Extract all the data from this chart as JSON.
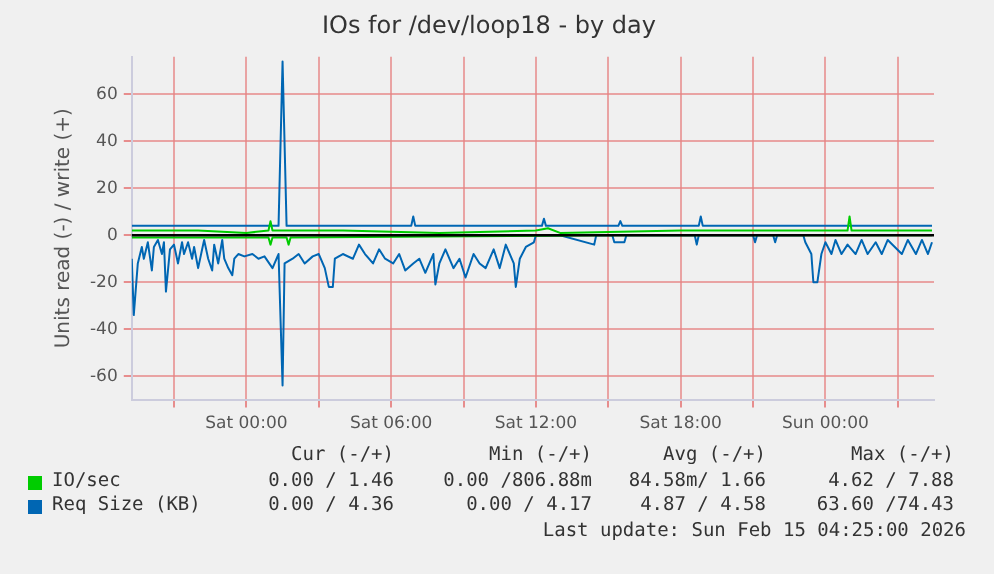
{
  "chart_data": {
    "type": "line",
    "title": "IOs for /dev/loop18 - by day",
    "ylabel": "Units read (-) / write (+)",
    "xlim": [
      "2026-02-13T19:15",
      "2026-02-15T04:30"
    ],
    "ylim": [
      -70,
      76
    ],
    "xticks": [
      {
        "value": "2026-02-13T21:00",
        "label": null
      },
      {
        "value": "2026-02-14T00:00",
        "label": "Sat 00:00"
      },
      {
        "value": "2026-02-14T03:00",
        "label": null
      },
      {
        "value": "2026-02-14T06:00",
        "label": "Sat 06:00"
      },
      {
        "value": "2026-02-14T09:00",
        "label": null
      },
      {
        "value": "2026-02-14T12:00",
        "label": "Sat 12:00"
      },
      {
        "value": "2026-02-14T15:00",
        "label": null
      },
      {
        "value": "2026-02-14T18:00",
        "label": "Sat 18:00"
      },
      {
        "value": "2026-02-14T21:00",
        "label": null
      },
      {
        "value": "2026-02-15T00:00",
        "label": "Sun 00:00"
      },
      {
        "value": "2026-02-15T03:00",
        "label": null
      }
    ],
    "yticks": [
      -60,
      -40,
      -20,
      0,
      20,
      40,
      60
    ],
    "grid": true,
    "legend": "bottom",
    "ref_lines": [
      {
        "axis": "y",
        "value": 0,
        "color": "#000000"
      }
    ],
    "series": [
      {
        "name": "IO/sec",
        "color": "#00cc00",
        "x": [
          "2026-02-13T19:15",
          "2026-02-13T22:00",
          "2026-02-14T00:00",
          "2026-02-14T00:55",
          "2026-02-14T01:00",
          "2026-02-14T01:05",
          "2026-02-14T04:00",
          "2026-02-14T08:00",
          "2026-02-14T12:00",
          "2026-02-14T12:30",
          "2026-02-14T13:00",
          "2026-02-14T18:00",
          "2026-02-14T22:00",
          "2026-02-15T00:55",
          "2026-02-15T01:00",
          "2026-02-15T01:05",
          "2026-02-15T04:25"
        ],
        "values": [
          2,
          2,
          1,
          2,
          6,
          2,
          2,
          1,
          2,
          3,
          1,
          2,
          2,
          2,
          8,
          2,
          2
        ]
      },
      {
        "name": "Req Size (KB)",
        "color": "#0066b3",
        "x": [
          "2026-02-13T19:15",
          "2026-02-14T01:20",
          "2026-02-14T01:30",
          "2026-02-14T01:40",
          "2026-02-14T06:50",
          "2026-02-14T06:55",
          "2026-02-14T07:00",
          "2026-02-14T12:15",
          "2026-02-14T12:20",
          "2026-02-14T12:25",
          "2026-02-14T15:25",
          "2026-02-14T15:30",
          "2026-02-14T15:35",
          "2026-02-14T18:45",
          "2026-02-14T18:50",
          "2026-02-14T18:55",
          "2026-02-15T04:25"
        ],
        "values": [
          4,
          4,
          74,
          4,
          4,
          8,
          4,
          4,
          7,
          4,
          4,
          6,
          4,
          4,
          8,
          4,
          4
        ]
      },
      {
        "color": "#00cc00",
        "x": [
          "2026-02-13T19:15",
          "2026-02-14T00:55",
          "2026-02-14T01:00",
          "2026-02-14T01:05",
          "2026-02-14T01:40",
          "2026-02-14T01:45",
          "2026-02-14T01:50",
          "2026-02-14T15:00",
          "2026-02-15T04:25"
        ],
        "values": [
          -1,
          -1,
          -4,
          -1,
          -1,
          -4,
          -1,
          0,
          0
        ]
      },
      {
        "color": "#0066b3",
        "x": [
          "2026-02-13T19:15",
          "2026-02-13T19:20",
          "2026-02-13T19:30",
          "2026-02-13T19:40",
          "2026-02-13T19:45",
          "2026-02-13T19:55",
          "2026-02-13T20:05",
          "2026-02-13T20:10",
          "2026-02-13T20:20",
          "2026-02-13T20:30",
          "2026-02-13T20:35",
          "2026-02-13T20:40",
          "2026-02-13T20:50",
          "2026-02-13T21:00",
          "2026-02-13T21:10",
          "2026-02-13T21:20",
          "2026-02-13T21:25",
          "2026-02-13T21:35",
          "2026-02-13T21:45",
          "2026-02-13T21:50",
          "2026-02-13T22:00",
          "2026-02-13T22:10",
          "2026-02-13T22:15",
          "2026-02-13T22:25",
          "2026-02-13T22:35",
          "2026-02-13T22:40",
          "2026-02-13T22:50",
          "2026-02-13T23:00",
          "2026-02-13T23:05",
          "2026-02-13T23:15",
          "2026-02-13T23:25",
          "2026-02-13T23:30",
          "2026-02-13T23:40",
          "2026-02-13T23:55",
          "2026-02-14T00:15",
          "2026-02-14T00:30",
          "2026-02-14T00:45",
          "2026-02-14T01:05",
          "2026-02-14T01:20",
          "2026-02-14T01:30",
          "2026-02-14T01:35",
          "2026-02-14T01:55",
          "2026-02-14T02:10",
          "2026-02-14T02:25",
          "2026-02-14T02:45",
          "2026-02-14T03:00",
          "2026-02-14T03:15",
          "2026-02-14T03:25",
          "2026-02-14T03:35",
          "2026-02-14T03:40",
          "2026-02-14T04:00",
          "2026-02-14T04:25",
          "2026-02-14T04:40",
          "2026-02-14T04:55",
          "2026-02-14T05:15",
          "2026-02-14T05:30",
          "2026-02-14T05:45",
          "2026-02-14T06:05",
          "2026-02-14T06:20",
          "2026-02-14T06:35",
          "2026-02-14T06:55",
          "2026-02-14T07:10",
          "2026-02-14T07:25",
          "2026-02-14T07:45",
          "2026-02-14T07:50",
          "2026-02-14T08:00",
          "2026-02-14T08:15",
          "2026-02-14T08:35",
          "2026-02-14T08:50",
          "2026-02-14T09:05",
          "2026-02-14T09:25",
          "2026-02-14T09:40",
          "2026-02-14T09:55",
          "2026-02-14T10:15",
          "2026-02-14T10:30",
          "2026-02-14T10:45",
          "2026-02-14T11:05",
          "2026-02-14T11:10",
          "2026-02-14T11:20",
          "2026-02-14T11:35",
          "2026-02-14T11:55",
          "2026-02-14T12:00",
          "2026-02-14T13:00",
          "2026-02-14T14:25",
          "2026-02-14T14:30",
          "2026-02-14T15:10",
          "2026-02-14T15:15",
          "2026-02-14T15:40",
          "2026-02-14T15:45",
          "2026-02-14T18:35",
          "2026-02-14T18:40",
          "2026-02-14T18:45",
          "2026-02-14T21:00",
          "2026-02-14T21:05",
          "2026-02-14T21:10",
          "2026-02-14T21:50",
          "2026-02-14T21:55",
          "2026-02-14T22:00",
          "2026-02-14T23:05",
          "2026-02-14T23:10",
          "2026-02-14T23:25",
          "2026-02-14T23:30",
          "2026-02-14T23:40",
          "2026-02-14T23:50",
          "2026-02-15T00:00",
          "2026-02-15T00:15",
          "2026-02-15T00:25",
          "2026-02-15T00:40",
          "2026-02-15T00:55",
          "2026-02-15T01:15",
          "2026-02-15T01:30",
          "2026-02-15T01:45",
          "2026-02-15T02:05",
          "2026-02-15T02:20",
          "2026-02-15T02:35",
          "2026-02-15T03:10",
          "2026-02-15T03:25",
          "2026-02-15T03:45",
          "2026-02-15T04:00",
          "2026-02-15T04:15",
          "2026-02-15T04:25"
        ],
        "values": [
          -10,
          -34,
          -12,
          -5,
          -10,
          -3,
          -15,
          -5,
          -2,
          -8,
          -3,
          -24,
          -6,
          -4,
          -12,
          -3,
          -8,
          -3,
          -10,
          -5,
          -14,
          -6,
          -2,
          -10,
          -15,
          -4,
          -12,
          -2,
          -10,
          -14,
          -17,
          -10,
          -8,
          -9,
          -8,
          -10,
          -9,
          -14,
          -8,
          -64,
          -12,
          -10,
          -8,
          -12,
          -9,
          -8,
          -14,
          -22,
          -22,
          -10,
          -8,
          -10,
          -4,
          -8,
          -12,
          -6,
          -10,
          -12,
          -8,
          -15,
          -12,
          -10,
          -16,
          -8,
          -21,
          -12,
          -6,
          -14,
          -10,
          -18,
          -8,
          -12,
          -14,
          -6,
          -14,
          -4,
          -12,
          -22,
          -10,
          -5,
          -3,
          0,
          0,
          -4,
          0,
          0,
          -3,
          -3,
          0,
          0,
          -4,
          0,
          0,
          -3,
          0,
          0,
          -3,
          0,
          0,
          -3,
          -8,
          -20,
          -20,
          -8,
          -3,
          -8,
          -2,
          -8,
          -4,
          -8,
          -2,
          -8,
          -3,
          -8,
          -2,
          -8,
          -2,
          -8,
          -2,
          -8,
          -3
        ]
      }
    ],
    "annotations": [
      "Cur (-/+)",
      "Min (-/+)",
      "Avg (-/+)",
      "Max (-/+)",
      "0.00 / 1.46",
      "0.00 /806.88m",
      "84.58m/ 1.66",
      "4.62 / 7.88",
      "0.00 / 4.36",
      "0.00 / 4.17",
      "4.87 / 4.58",
      "63.60 /74.43",
      "Last update: Sun Feb 15 04:25:00 2026"
    ]
  }
}
